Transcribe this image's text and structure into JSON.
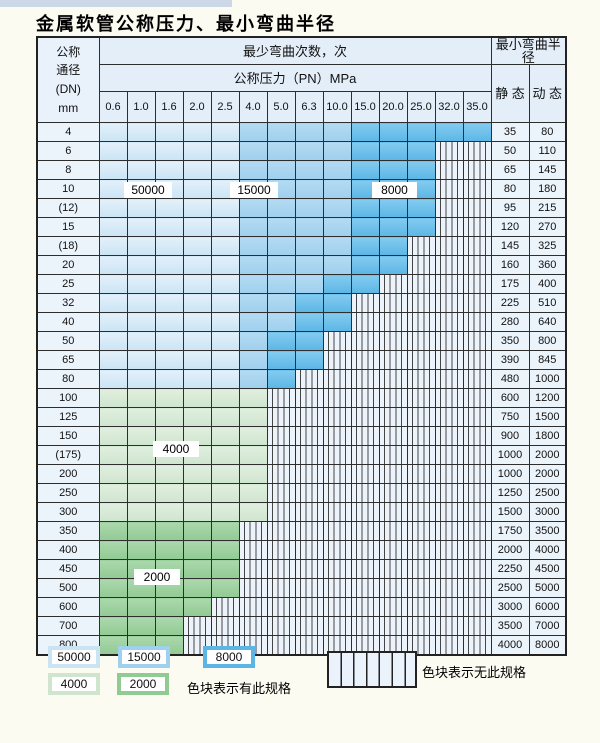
{
  "page_background": "#fbfbf1",
  "title": "金属软管公称压力、最小弯曲半径",
  "table": {
    "corner_header_lines": [
      "公称",
      "通径",
      "(DN)",
      "mm"
    ],
    "bend_times_header": "最少弯曲次数，次",
    "pressure_header": "公称压力（PN）MPa",
    "radius_header": "最小弯曲半径",
    "static_label": "静 态",
    "dynamic_label": "动 态",
    "zone_labels": [
      {
        "text": "50000"
      },
      {
        "text": "15000"
      },
      {
        "text": "8000"
      },
      {
        "text": "4000"
      },
      {
        "text": "2000"
      }
    ]
  },
  "chart_data": {
    "type": "table",
    "pressure_columns_MPa": [
      "0.6",
      "1.0",
      "1.6",
      "2.0",
      "2.5",
      "4.0",
      "5.0",
      "6.3",
      "10.0",
      "15.0",
      "20.0",
      "25.0",
      "32.0",
      "35.0"
    ],
    "zone_colors": {
      "50000": "#cbe4f4",
      "15000": "#9fd0ee",
      "8000": "#5cb6e5",
      "4000": "#cfe5ce",
      "2000": "#92ca94",
      "none": "hatched-no-spec"
    },
    "rows": [
      {
        "dn": "4",
        "static": "35",
        "dynamic": "80",
        "zone_runs": [
          [
            "50000",
            5
          ],
          [
            "15000",
            4
          ],
          [
            "8000",
            5
          ]
        ]
      },
      {
        "dn": "6",
        "static": "50",
        "dynamic": "110",
        "zone_runs": [
          [
            "50000",
            5
          ],
          [
            "15000",
            4
          ],
          [
            "8000",
            3
          ],
          [
            "none",
            2
          ]
        ]
      },
      {
        "dn": "8",
        "static": "65",
        "dynamic": "145",
        "zone_runs": [
          [
            "50000",
            5
          ],
          [
            "15000",
            4
          ],
          [
            "8000",
            3
          ],
          [
            "none",
            2
          ]
        ]
      },
      {
        "dn": "10",
        "static": "80",
        "dynamic": "180",
        "zone_runs": [
          [
            "50000",
            5
          ],
          [
            "15000",
            4
          ],
          [
            "8000",
            3
          ],
          [
            "none",
            2
          ]
        ]
      },
      {
        "dn": "(12)",
        "static": "95",
        "dynamic": "215",
        "zone_runs": [
          [
            "50000",
            5
          ],
          [
            "15000",
            4
          ],
          [
            "8000",
            3
          ],
          [
            "none",
            2
          ]
        ]
      },
      {
        "dn": "15",
        "static": "120",
        "dynamic": "270",
        "zone_runs": [
          [
            "50000",
            5
          ],
          [
            "15000",
            4
          ],
          [
            "8000",
            3
          ],
          [
            "none",
            2
          ]
        ]
      },
      {
        "dn": "(18)",
        "static": "145",
        "dynamic": "325",
        "zone_runs": [
          [
            "50000",
            5
          ],
          [
            "15000",
            4
          ],
          [
            "8000",
            2
          ],
          [
            "none",
            3
          ]
        ]
      },
      {
        "dn": "20",
        "static": "160",
        "dynamic": "360",
        "zone_runs": [
          [
            "50000",
            5
          ],
          [
            "15000",
            4
          ],
          [
            "8000",
            2
          ],
          [
            "none",
            3
          ]
        ]
      },
      {
        "dn": "25",
        "static": "175",
        "dynamic": "400",
        "zone_runs": [
          [
            "50000",
            5
          ],
          [
            "15000",
            3
          ],
          [
            "8000",
            2
          ],
          [
            "none",
            4
          ]
        ]
      },
      {
        "dn": "32",
        "static": "225",
        "dynamic": "510",
        "zone_runs": [
          [
            "50000",
            5
          ],
          [
            "15000",
            2
          ],
          [
            "8000",
            2
          ],
          [
            "none",
            5
          ]
        ]
      },
      {
        "dn": "40",
        "static": "280",
        "dynamic": "640",
        "zone_runs": [
          [
            "50000",
            5
          ],
          [
            "15000",
            2
          ],
          [
            "8000",
            2
          ],
          [
            "none",
            5
          ]
        ]
      },
      {
        "dn": "50",
        "static": "350",
        "dynamic": "800",
        "zone_runs": [
          [
            "50000",
            5
          ],
          [
            "15000",
            1
          ],
          [
            "8000",
            2
          ],
          [
            "none",
            6
          ]
        ]
      },
      {
        "dn": "65",
        "static": "390",
        "dynamic": "845",
        "zone_runs": [
          [
            "50000",
            5
          ],
          [
            "15000",
            1
          ],
          [
            "8000",
            2
          ],
          [
            "none",
            6
          ]
        ]
      },
      {
        "dn": "80",
        "static": "480",
        "dynamic": "1000",
        "zone_runs": [
          [
            "50000",
            5
          ],
          [
            "15000",
            1
          ],
          [
            "8000",
            1
          ],
          [
            "none",
            7
          ]
        ]
      },
      {
        "dn": "100",
        "static": "600",
        "dynamic": "1200",
        "zone_runs": [
          [
            "4000",
            6
          ],
          [
            "none",
            8
          ]
        ]
      },
      {
        "dn": "125",
        "static": "750",
        "dynamic": "1500",
        "zone_runs": [
          [
            "4000",
            6
          ],
          [
            "none",
            8
          ]
        ]
      },
      {
        "dn": "150",
        "static": "900",
        "dynamic": "1800",
        "zone_runs": [
          [
            "4000",
            6
          ],
          [
            "none",
            8
          ]
        ]
      },
      {
        "dn": "(175)",
        "static": "1000",
        "dynamic": "2000",
        "zone_runs": [
          [
            "4000",
            6
          ],
          [
            "none",
            8
          ]
        ]
      },
      {
        "dn": "200",
        "static": "1000",
        "dynamic": "2000",
        "zone_runs": [
          [
            "4000",
            6
          ],
          [
            "none",
            8
          ]
        ]
      },
      {
        "dn": "250",
        "static": "1250",
        "dynamic": "2500",
        "zone_runs": [
          [
            "4000",
            6
          ],
          [
            "none",
            8
          ]
        ]
      },
      {
        "dn": "300",
        "static": "1500",
        "dynamic": "3000",
        "zone_runs": [
          [
            "4000",
            6
          ],
          [
            "none",
            8
          ]
        ]
      },
      {
        "dn": "350",
        "static": "1750",
        "dynamic": "3500",
        "zone_runs": [
          [
            "2000",
            5
          ],
          [
            "none",
            9
          ]
        ]
      },
      {
        "dn": "400",
        "static": "2000",
        "dynamic": "4000",
        "zone_runs": [
          [
            "2000",
            5
          ],
          [
            "none",
            9
          ]
        ]
      },
      {
        "dn": "450",
        "static": "2250",
        "dynamic": "4500",
        "zone_runs": [
          [
            "2000",
            5
          ],
          [
            "none",
            9
          ]
        ]
      },
      {
        "dn": "500",
        "static": "2500",
        "dynamic": "5000",
        "zone_runs": [
          [
            "2000",
            5
          ],
          [
            "none",
            9
          ]
        ]
      },
      {
        "dn": "600",
        "static": "3000",
        "dynamic": "6000",
        "zone_runs": [
          [
            "2000",
            4
          ],
          [
            "none",
            10
          ]
        ]
      },
      {
        "dn": "700",
        "static": "3500",
        "dynamic": "7000",
        "zone_runs": [
          [
            "2000",
            3
          ],
          [
            "none",
            11
          ]
        ]
      },
      {
        "dn": "800",
        "static": "4000",
        "dynamic": "8000",
        "zone_runs": [
          [
            "2000",
            3
          ],
          [
            "none",
            11
          ]
        ]
      }
    ]
  },
  "legend": {
    "items": [
      {
        "value": "50000",
        "color": "#cbe4f4"
      },
      {
        "value": "15000",
        "color": "#9fd0ee"
      },
      {
        "value": "8000",
        "color": "#5cb6e5"
      },
      {
        "value": "4000",
        "color": "#cfe5ce"
      },
      {
        "value": "2000",
        "color": "#92ca94"
      }
    ],
    "has_spec_text": "色块表示有此规格",
    "no_spec_text": "色块表示无此规格"
  }
}
